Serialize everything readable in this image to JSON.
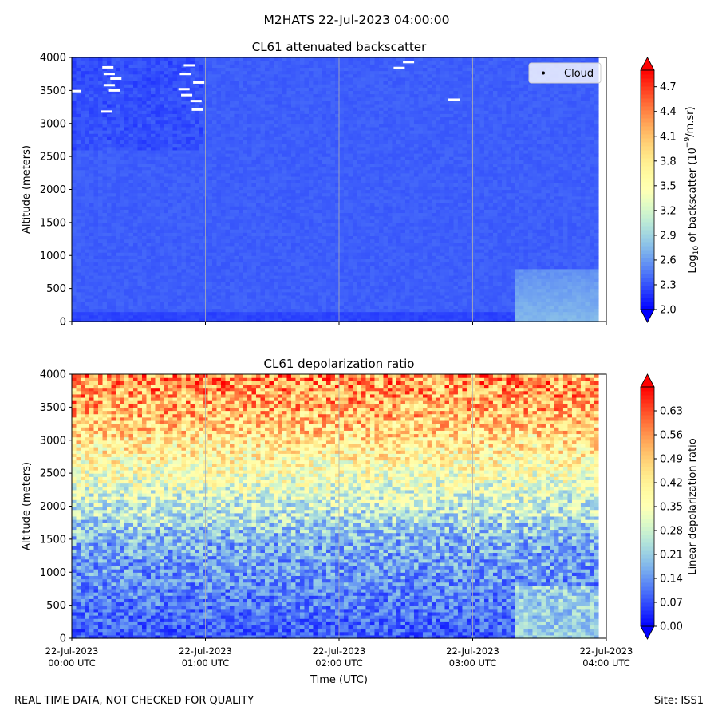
{
  "suptitle": "M2HATS 22-Jul-2023 04:00:00",
  "footer_left": "REAL TIME DATA, NOT CHECKED FOR QUALITY",
  "footer_right": "Site: ISS1",
  "chart_data": [
    {
      "type": "heatmap",
      "title": "CL61 attenuated backscatter",
      "ylabel": "Altitude (meters)",
      "xlabel": "",
      "ylim": [
        0,
        4000
      ],
      "yticks": [
        0,
        500,
        1000,
        1500,
        2000,
        2500,
        3000,
        3500,
        4000
      ],
      "xlim_hours": [
        0,
        4
      ],
      "xticks_hours": [
        0,
        1,
        2,
        3,
        4
      ],
      "xtick_labels": [],
      "grid": "vertical at each hour",
      "legend": {
        "position": "top-right",
        "entries": [
          "Cloud"
        ]
      },
      "colorbar": {
        "label": "Log10 of backscatter (10^-9/m.sr)",
        "label_prefix": "Log",
        "label_sub": "10",
        "label_mid": " of backscatter (10",
        "label_sup": "−9",
        "label_suffix": "/m.sr)",
        "range": [
          2.0,
          4.9
        ],
        "ticks": [
          "2.0",
          "2.3",
          "2.6",
          "2.9",
          "3.2",
          "3.5",
          "3.8",
          "4.1",
          "4.4",
          "4.7"
        ],
        "colormap": "rainbow",
        "extend": "both"
      },
      "field_summary": {
        "typical_value": 2.35,
        "near_surface_value_below_150m": 2.25,
        "after_03_20_utc_low_layer_value": 2.75,
        "cloud_points": [
          {
            "time_hours": 0.27,
            "altitude_m": 3850
          },
          {
            "time_hours": 0.28,
            "altitude_m": 3750
          },
          {
            "time_hours": 0.33,
            "altitude_m": 3680
          },
          {
            "time_hours": 0.28,
            "altitude_m": 3580
          },
          {
            "time_hours": 0.32,
            "altitude_m": 3500
          },
          {
            "time_hours": 0.03,
            "altitude_m": 3490
          },
          {
            "time_hours": 0.26,
            "altitude_m": 3180
          },
          {
            "time_hours": 0.88,
            "altitude_m": 3880
          },
          {
            "time_hours": 0.85,
            "altitude_m": 3750
          },
          {
            "time_hours": 0.95,
            "altitude_m": 3620
          },
          {
            "time_hours": 0.84,
            "altitude_m": 3520
          },
          {
            "time_hours": 0.86,
            "altitude_m": 3430
          },
          {
            "time_hours": 0.93,
            "altitude_m": 3340
          },
          {
            "time_hours": 0.94,
            "altitude_m": 3210
          },
          {
            "time_hours": 2.45,
            "altitude_m": 3840
          },
          {
            "time_hours": 2.52,
            "altitude_m": 3930
          },
          {
            "time_hours": 2.86,
            "altitude_m": 3360
          }
        ]
      }
    },
    {
      "type": "heatmap",
      "title": "CL61 depolarization ratio",
      "ylabel": "Altitude (meters)",
      "xlabel": "Time (UTC)",
      "ylim": [
        0,
        4000
      ],
      "yticks": [
        0,
        500,
        1000,
        1500,
        2000,
        2500,
        3000,
        3500,
        4000
      ],
      "xlim_hours": [
        0,
        4
      ],
      "xticks_hours": [
        0,
        1,
        2,
        3,
        4
      ],
      "xtick_labels": [
        [
          "22-Jul-2023",
          "00:00 UTC"
        ],
        [
          "22-Jul-2023",
          "01:00 UTC"
        ],
        [
          "22-Jul-2023",
          "02:00 UTC"
        ],
        [
          "22-Jul-2023",
          "03:00 UTC"
        ],
        [
          "22-Jul-2023",
          "04:00 UTC"
        ]
      ],
      "grid": "vertical at each hour",
      "colorbar": {
        "label": "Linear depolarization ratio",
        "range": [
          0.0,
          0.7
        ],
        "ticks": [
          "0.00",
          "0.07",
          "0.14",
          "0.21",
          "0.28",
          "0.35",
          "0.42",
          "0.49",
          "0.56",
          "0.63"
        ],
        "colormap": "rainbow",
        "extend": "both"
      },
      "field_summary": {
        "surface_value": 0.08,
        "value_at_1500m": 0.18,
        "value_at_2500m": 0.36,
        "value_at_3500m": 0.52,
        "value_at_4000m": 0.56,
        "after_03_20_utc_low_layer_value": 0.21
      }
    }
  ]
}
